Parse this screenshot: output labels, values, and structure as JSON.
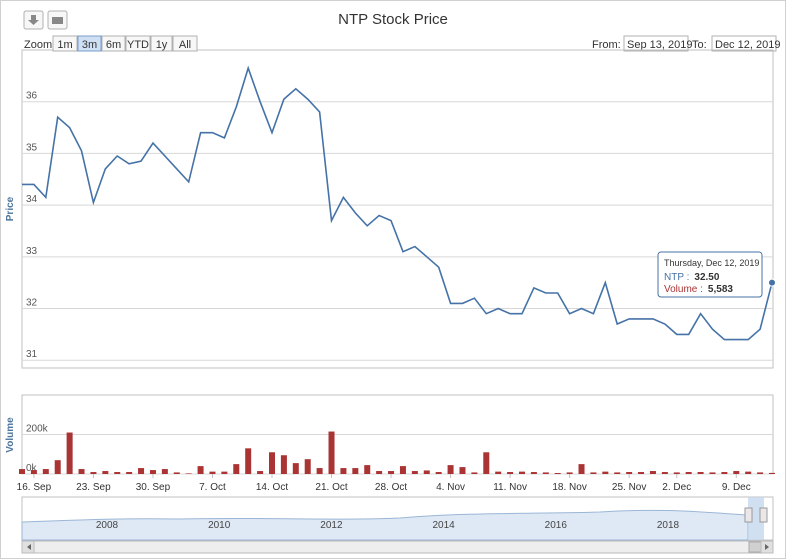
{
  "chart_data": {
    "type": "line",
    "title": "NTP Stock Price",
    "zoom": {
      "label": "Zoom",
      "buttons": [
        "1m",
        "3m",
        "6m",
        "YTD",
        "1y",
        "All"
      ],
      "selected": 1
    },
    "range": {
      "from_label": "From:",
      "from": "Sep 13, 2019",
      "to_label": "To:",
      "to": "Dec 12, 2019"
    },
    "categories": [
      null,
      "16. Sep",
      null,
      null,
      null,
      null,
      "23. Sep",
      null,
      null,
      null,
      null,
      "30. Sep",
      null,
      null,
      null,
      null,
      "7. Oct",
      null,
      null,
      null,
      null,
      "14. Oct",
      null,
      null,
      null,
      null,
      "21. Oct",
      null,
      null,
      null,
      null,
      "28. Oct",
      null,
      null,
      null,
      null,
      "4. Nov",
      null,
      null,
      null,
      null,
      "11. Nov",
      null,
      null,
      null,
      null,
      "18. Nov",
      null,
      null,
      null,
      null,
      "25. Nov",
      null,
      null,
      null,
      "2. Dec",
      null,
      null,
      null,
      null,
      "9. Dec",
      null,
      null,
      null
    ],
    "ylabel": "Price",
    "ylim": [
      30.85,
      37.0
    ],
    "yticks": [
      31,
      32,
      33,
      34,
      35,
      36
    ],
    "y2label": "Volume",
    "y2lim": [
      0,
      400000
    ],
    "y2ticks": [
      {
        "value": 0,
        "label": "0k"
      },
      {
        "value": 200000,
        "label": "200k"
      }
    ],
    "grid": true,
    "series": [
      {
        "color": "#4572a7",
        "values": [
          34.4,
          34.4,
          34.15,
          35.7,
          35.5,
          35.05,
          34.05,
          34.7,
          34.95,
          34.8,
          34.85,
          35.2,
          34.95,
          34.7,
          34.45,
          35.4,
          35.4,
          35.3,
          35.9,
          36.65,
          36.0,
          35.4,
          36.05,
          36.25,
          36.05,
          35.8,
          33.7,
          34.15,
          33.85,
          33.6,
          33.8,
          33.7,
          33.1,
          33.2,
          33.0,
          32.8,
          32.1,
          32.1,
          32.2,
          31.9,
          32.0,
          31.9,
          31.9,
          32.4,
          32.3,
          32.3,
          31.9,
          32.0,
          31.9,
          32.5,
          31.7,
          31.8,
          31.8,
          31.8,
          31.7,
          31.5,
          31.5,
          31.9,
          31.6,
          31.4,
          31.4,
          31.4,
          31.6,
          32.5
        ]
      },
      {
        "type": "bar",
        "axis": "y2",
        "color": "#aa3333",
        "values": [
          25000,
          20000,
          25000,
          70000,
          210000,
          25000,
          10000,
          15000,
          10000,
          10000,
          30000,
          20000,
          25000,
          8000,
          3000,
          40000,
          12000,
          12000,
          50000,
          130000,
          15000,
          110000,
          95000,
          55000,
          75000,
          30000,
          215000,
          30000,
          30000,
          45000,
          15000,
          15000,
          40000,
          15000,
          18000,
          10000,
          45000,
          35000,
          8000,
          110000,
          12000,
          10000,
          12000,
          10000,
          8000,
          5000,
          8000,
          50000,
          8000,
          12000,
          8000,
          10000,
          10000,
          15000,
          10000,
          8000,
          10000,
          10000,
          8000,
          10000,
          15000,
          12000,
          8000,
          5583
        ]
      }
    ],
    "tooltip": {
      "date": "Thursday, Dec 12, 2019",
      "items": [
        {
          "label": "NTP :",
          "value": "32.50"
        },
        {
          "label": "Volume :",
          "value": "5,583"
        }
      ]
    },
    "navigator": {
      "labels": [
        "2008",
        "2010",
        "2012",
        "2014",
        "2016",
        "2018"
      ]
    }
  }
}
